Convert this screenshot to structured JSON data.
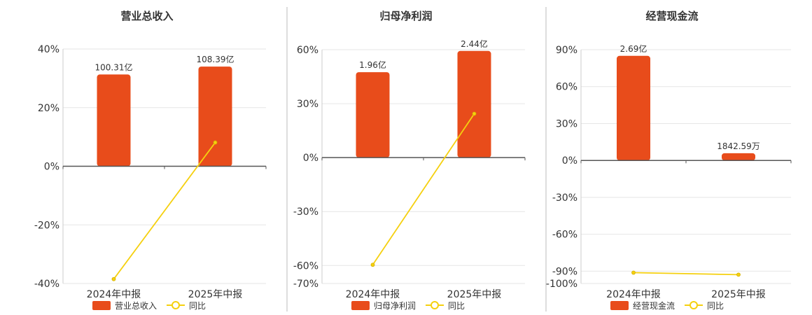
{
  "chart_data": [
    {
      "type": "bar",
      "title": "营业总收入",
      "categories": [
        "2024年中报",
        "2025年中报"
      ],
      "ylim": [
        -40,
        40
      ],
      "yticks": [
        -40,
        -20,
        0,
        20,
        40
      ],
      "series": [
        {
          "name": "营业总收入",
          "type": "bar",
          "color": "#e84c1b",
          "values": [
            31.3,
            34.0
          ],
          "labels": [
            "100.31亿",
            "108.39亿"
          ]
        },
        {
          "name": "同比",
          "type": "line",
          "color": "#f5d00f",
          "values": [
            -38.5,
            8.1
          ]
        }
      ],
      "grid": true,
      "legend": "bottom"
    },
    {
      "type": "bar",
      "title": "归母净利润",
      "categories": [
        "2024年中报",
        "2025年中报"
      ],
      "ylim": [
        -70,
        60
      ],
      "yticks": [
        -70,
        -60,
        -30,
        0,
        30,
        60
      ],
      "series": [
        {
          "name": "归母净利润",
          "type": "bar",
          "color": "#e84c1b",
          "values": [
            47.5,
            59.3
          ],
          "labels": [
            "1.96亿",
            "2.44亿"
          ]
        },
        {
          "name": "同比",
          "type": "line",
          "color": "#f5d00f",
          "values": [
            -59.6,
            24.4
          ]
        }
      ],
      "grid": true,
      "legend": "bottom"
    },
    {
      "type": "bar",
      "title": "经营现金流",
      "categories": [
        "2024年中报",
        "2025年中报"
      ],
      "ylim": [
        -100,
        90
      ],
      "yticks": [
        -100,
        -90,
        -60,
        -30,
        0,
        30,
        60,
        90
      ],
      "series": [
        {
          "name": "经营现金流",
          "type": "bar",
          "color": "#e84c1b",
          "values": [
            85.0,
            5.9
          ],
          "labels": [
            "2.69亿",
            "1842.59万"
          ]
        },
        {
          "name": "同比",
          "type": "line",
          "color": "#f5d00f",
          "values": [
            -91.2,
            -92.8
          ]
        }
      ],
      "grid": true,
      "legend": "bottom"
    }
  ]
}
